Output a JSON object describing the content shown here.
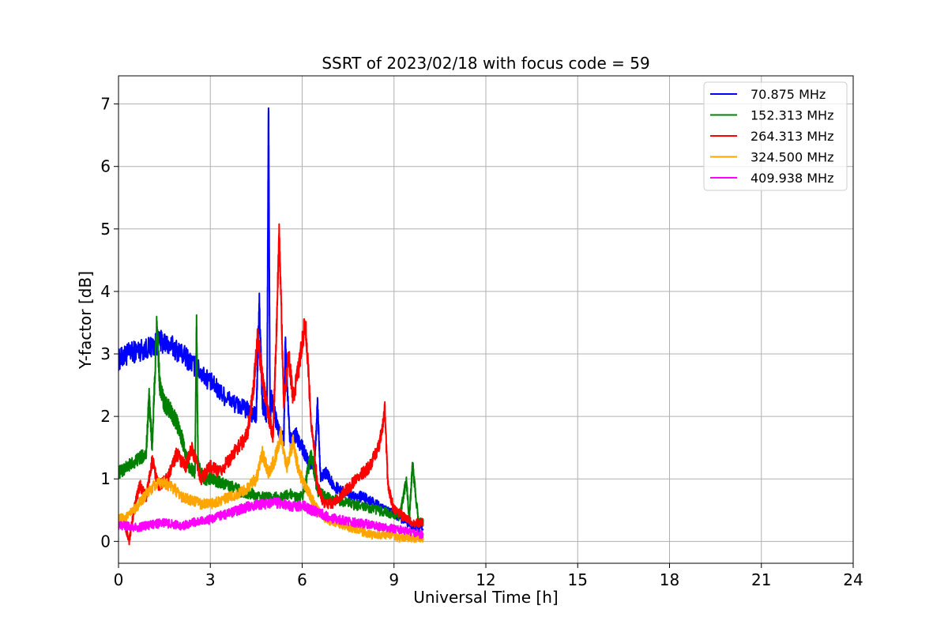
{
  "chart_data": {
    "type": "line",
    "title": "SSRT of 2023/02/18 with focus code = 59",
    "xlabel": "Universal Time [h]",
    "ylabel": "Y-factor [dB]",
    "xlim": [
      0,
      24
    ],
    "ylim": [
      -0.35,
      7.45
    ],
    "xticks": [
      0,
      3,
      6,
      9,
      12,
      15,
      18,
      21,
      24
    ],
    "xtick_labels": [
      "0",
      "3",
      "6",
      "9",
      "12",
      "15",
      "18",
      "21",
      "24"
    ],
    "yticks": [
      0,
      1,
      2,
      3,
      4,
      5,
      6,
      7
    ],
    "ytick_labels": [
      "0",
      "1",
      "2",
      "3",
      "4",
      "5",
      "6",
      "7"
    ],
    "grid": true,
    "legend_position": "top-right",
    "series": [
      {
        "name": " 70.875 MHz",
        "color": "#0000ff",
        "x": [
          0,
          0.3,
          0.6,
          1.0,
          1.4,
          1.8,
          2.2,
          2.6,
          3.0,
          3.4,
          3.8,
          4.2,
          4.5,
          4.6,
          4.7,
          4.85,
          4.9,
          4.95,
          5.0,
          5.2,
          5.4,
          5.45,
          5.6,
          5.8,
          6.0,
          6.2,
          6.4,
          6.5,
          6.6,
          6.8,
          7.0,
          7.3,
          7.6,
          8.0,
          8.4,
          8.7,
          9.0,
          9.3,
          9.6,
          9.95
        ],
        "values": [
          2.9,
          3.0,
          3.05,
          3.1,
          3.2,
          3.1,
          2.95,
          2.75,
          2.55,
          2.35,
          2.2,
          2.1,
          2.0,
          3.8,
          2.2,
          2.0,
          7.1,
          2.0,
          2.3,
          1.8,
          1.6,
          3.2,
          1.6,
          1.7,
          1.5,
          1.3,
          1.2,
          2.2,
          1.0,
          1.1,
          0.9,
          0.8,
          0.75,
          0.7,
          0.6,
          0.5,
          0.45,
          0.35,
          0.25,
          0.2
        ]
      },
      {
        "name": "152.313 MHz",
        "color": "#008000",
        "x": [
          0,
          0.3,
          0.6,
          0.9,
          1.0,
          1.1,
          1.25,
          1.35,
          1.5,
          1.7,
          1.9,
          2.1,
          2.3,
          2.5,
          2.55,
          2.6,
          2.8,
          3.0,
          3.3,
          3.6,
          4.0,
          4.4,
          4.8,
          5.2,
          5.6,
          6.0,
          6.3,
          6.5,
          6.8,
          7.2,
          7.6,
          8.0,
          8.4,
          8.8,
          9.2,
          9.4,
          9.5,
          9.6,
          9.8,
          9.95
        ],
        "values": [
          1.1,
          1.2,
          1.3,
          1.4,
          2.3,
          1.5,
          3.5,
          2.5,
          2.2,
          2.1,
          1.9,
          1.6,
          1.2,
          1.1,
          3.55,
          1.2,
          1.0,
          1.0,
          0.95,
          0.9,
          0.8,
          0.75,
          0.7,
          0.7,
          0.75,
          0.7,
          1.4,
          0.8,
          0.7,
          0.65,
          0.6,
          0.55,
          0.5,
          0.45,
          0.4,
          1.0,
          0.35,
          1.25,
          0.3,
          0.3
        ]
      },
      {
        "name": "264.313 MHz",
        "color": "#ff0000",
        "x": [
          0,
          0.2,
          0.35,
          0.5,
          0.7,
          0.9,
          1.1,
          1.3,
          1.6,
          1.9,
          2.2,
          2.4,
          2.7,
          3.0,
          3.3,
          3.6,
          3.9,
          4.2,
          4.4,
          4.55,
          4.7,
          4.9,
          5.05,
          5.15,
          5.25,
          5.4,
          5.55,
          5.7,
          5.9,
          6.1,
          6.3,
          6.5,
          6.7,
          7.0,
          7.4,
          7.8,
          8.2,
          8.5,
          8.7,
          8.8,
          9.0,
          9.3,
          9.6,
          9.95
        ],
        "values": [
          0.3,
          0.3,
          0.0,
          0.5,
          0.9,
          0.7,
          1.3,
          0.9,
          1.0,
          1.4,
          1.2,
          1.5,
          1.0,
          1.2,
          1.1,
          1.3,
          1.5,
          1.7,
          2.4,
          3.3,
          2.6,
          2.0,
          1.7,
          3.2,
          4.95,
          2.2,
          3.0,
          2.3,
          2.8,
          3.55,
          1.9,
          0.9,
          0.6,
          0.6,
          0.8,
          1.0,
          1.2,
          1.5,
          2.1,
          0.9,
          0.5,
          0.4,
          0.3,
          0.3
        ]
      },
      {
        "name": "324.500 MHz",
        "color": "#ffa500",
        "x": [
          0,
          0.3,
          0.6,
          0.9,
          1.2,
          1.5,
          1.8,
          2.1,
          2.4,
          2.7,
          3.0,
          3.3,
          3.6,
          3.9,
          4.2,
          4.5,
          4.7,
          4.9,
          5.1,
          5.3,
          5.5,
          5.7,
          5.9,
          6.1,
          6.3,
          6.5,
          6.8,
          7.1,
          7.4,
          7.7,
          8.0,
          8.3,
          8.6,
          8.9,
          9.2,
          9.5,
          9.8,
          9.95
        ],
        "values": [
          0.35,
          0.4,
          0.55,
          0.75,
          0.9,
          0.95,
          0.85,
          0.7,
          0.65,
          0.6,
          0.6,
          0.65,
          0.7,
          0.75,
          0.85,
          1.0,
          1.4,
          1.1,
          1.3,
          1.7,
          1.2,
          1.6,
          1.1,
          0.9,
          0.7,
          0.5,
          0.35,
          0.3,
          0.25,
          0.2,
          0.15,
          0.1,
          0.1,
          0.1,
          0.05,
          0.05,
          0.05,
          0.05
        ]
      },
      {
        "name": "409.938 MHz",
        "color": "#ff00ff",
        "x": [
          0,
          0.3,
          0.6,
          0.9,
          1.2,
          1.5,
          1.8,
          2.1,
          2.4,
          2.7,
          3.0,
          3.3,
          3.6,
          3.9,
          4.2,
          4.5,
          4.8,
          5.1,
          5.4,
          5.7,
          6.0,
          6.3,
          6.6,
          6.9,
          7.2,
          7.5,
          7.8,
          8.1,
          8.4,
          8.7,
          9.0,
          9.3,
          9.6,
          9.95
        ],
        "values": [
          0.25,
          0.25,
          0.22,
          0.25,
          0.28,
          0.3,
          0.27,
          0.25,
          0.3,
          0.32,
          0.35,
          0.4,
          0.45,
          0.5,
          0.55,
          0.58,
          0.6,
          0.62,
          0.6,
          0.55,
          0.58,
          0.5,
          0.45,
          0.38,
          0.35,
          0.32,
          0.3,
          0.28,
          0.25,
          0.22,
          0.2,
          0.18,
          0.15,
          0.1
        ]
      }
    ]
  }
}
